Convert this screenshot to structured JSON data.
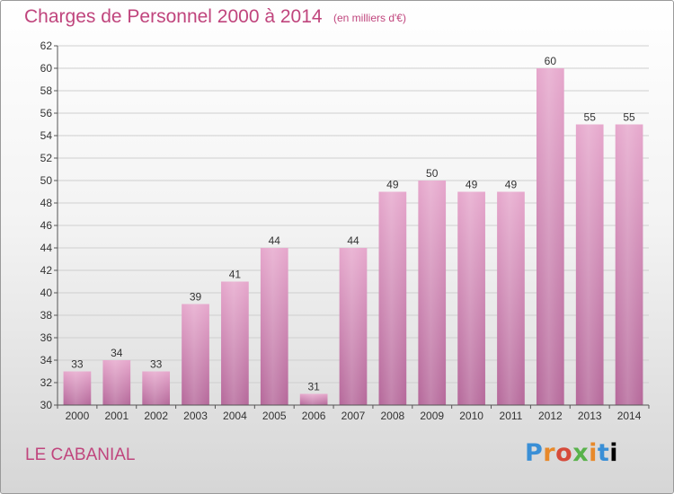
{
  "header": {
    "title": "Charges de Personnel 2000 à 2014",
    "subtitle": "(en milliers d'€)"
  },
  "footer": {
    "commune": "LE CABANIAL",
    "logo_text": "Proxiti"
  },
  "colors": {
    "bar_top": "#e6a7cc",
    "bar_bottom": "#b5689a",
    "text_accent": "#c0457d"
  },
  "chart_data": {
    "type": "bar",
    "title": "Charges de Personnel 2000 à 2014",
    "subtitle": "(en milliers d'€)",
    "xlabel": "",
    "ylabel": "",
    "categories": [
      "2000",
      "2001",
      "2002",
      "2003",
      "2004",
      "2005",
      "2006",
      "2007",
      "2008",
      "2009",
      "2010",
      "2011",
      "2012",
      "2013",
      "2014"
    ],
    "values": [
      33,
      34,
      33,
      39,
      41,
      44,
      31,
      44,
      49,
      50,
      49,
      49,
      60,
      55,
      55
    ],
    "ylim": [
      30,
      62
    ],
    "yticks": [
      30,
      32,
      34,
      36,
      38,
      40,
      42,
      44,
      46,
      48,
      50,
      52,
      54,
      56,
      58,
      60,
      62
    ],
    "grid": true,
    "data_labels": true
  }
}
